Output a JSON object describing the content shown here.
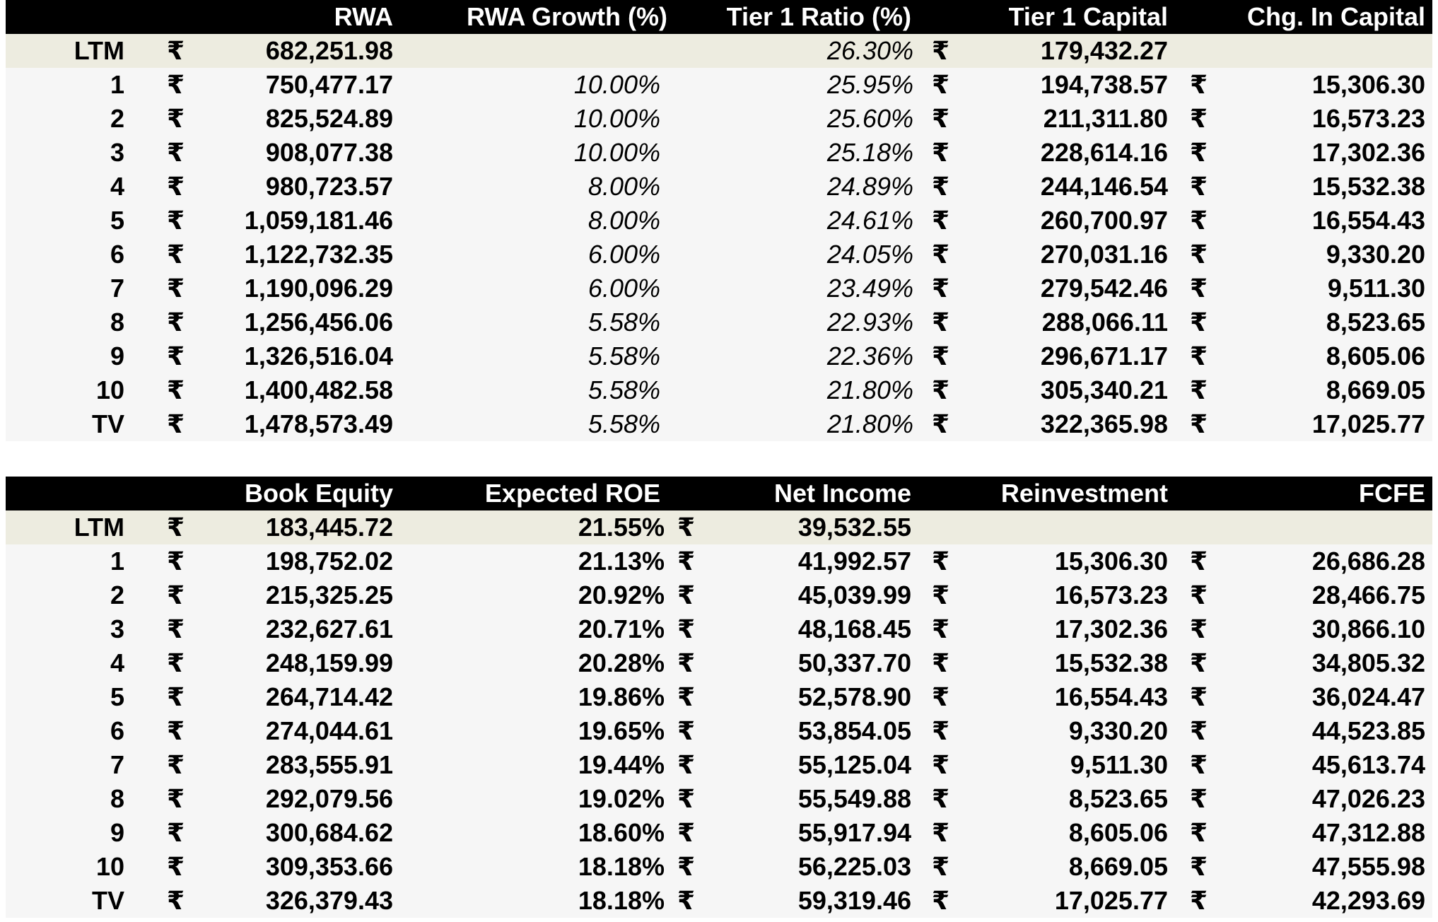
{
  "table1": {
    "headers": [
      "RWA",
      "RWA Growth (%)",
      "Tier 1 Ratio (%)",
      "Tier 1 Capital",
      "Chg. In Capital"
    ],
    "currency": "₹",
    "rows": [
      {
        "label": "LTM",
        "rwa": "682,251.98",
        "growth": "",
        "ratio": "26.30%",
        "capital": "179,432.27",
        "chg": ""
      },
      {
        "label": "1",
        "rwa": "750,477.17",
        "growth": "10.00%",
        "ratio": "25.95%",
        "capital": "194,738.57",
        "chg": "15,306.30"
      },
      {
        "label": "2",
        "rwa": "825,524.89",
        "growth": "10.00%",
        "ratio": "25.60%",
        "capital": "211,311.80",
        "chg": "16,573.23"
      },
      {
        "label": "3",
        "rwa": "908,077.38",
        "growth": "10.00%",
        "ratio": "25.18%",
        "capital": "228,614.16",
        "chg": "17,302.36"
      },
      {
        "label": "4",
        "rwa": "980,723.57",
        "growth": "8.00%",
        "ratio": "24.89%",
        "capital": "244,146.54",
        "chg": "15,532.38"
      },
      {
        "label": "5",
        "rwa": "1,059,181.46",
        "growth": "8.00%",
        "ratio": "24.61%",
        "capital": "260,700.97",
        "chg": "16,554.43"
      },
      {
        "label": "6",
        "rwa": "1,122,732.35",
        "growth": "6.00%",
        "ratio": "24.05%",
        "capital": "270,031.16",
        "chg": "9,330.20"
      },
      {
        "label": "7",
        "rwa": "1,190,096.29",
        "growth": "6.00%",
        "ratio": "23.49%",
        "capital": "279,542.46",
        "chg": "9,511.30"
      },
      {
        "label": "8",
        "rwa": "1,256,456.06",
        "growth": "5.58%",
        "ratio": "22.93%",
        "capital": "288,066.11",
        "chg": "8,523.65"
      },
      {
        "label": "9",
        "rwa": "1,326,516.04",
        "growth": "5.58%",
        "ratio": "22.36%",
        "capital": "296,671.17",
        "chg": "8,605.06"
      },
      {
        "label": "10",
        "rwa": "1,400,482.58",
        "growth": "5.58%",
        "ratio": "21.80%",
        "capital": "305,340.21",
        "chg": "8,669.05"
      },
      {
        "label": "TV",
        "rwa": "1,478,573.49",
        "growth": "5.58%",
        "ratio": "21.80%",
        "capital": "322,365.98",
        "chg": "17,025.77"
      }
    ]
  },
  "table2": {
    "headers": [
      "Book Equity",
      "Expected ROE",
      "Net Income",
      "Reinvestment",
      "FCFE"
    ],
    "currency": "₹",
    "rows": [
      {
        "label": "LTM",
        "equity": "183,445.72",
        "roe": "21.55%",
        "income": "39,532.55",
        "reinv": "",
        "fcfe": ""
      },
      {
        "label": "1",
        "equity": "198,752.02",
        "roe": "21.13%",
        "income": "41,992.57",
        "reinv": "15,306.30",
        "fcfe": "26,686.28"
      },
      {
        "label": "2",
        "equity": "215,325.25",
        "roe": "20.92%",
        "income": "45,039.99",
        "reinv": "16,573.23",
        "fcfe": "28,466.75"
      },
      {
        "label": "3",
        "equity": "232,627.61",
        "roe": "20.71%",
        "income": "48,168.45",
        "reinv": "17,302.36",
        "fcfe": "30,866.10"
      },
      {
        "label": "4",
        "equity": "248,159.99",
        "roe": "20.28%",
        "income": "50,337.70",
        "reinv": "15,532.38",
        "fcfe": "34,805.32"
      },
      {
        "label": "5",
        "equity": "264,714.42",
        "roe": "19.86%",
        "income": "52,578.90",
        "reinv": "16,554.43",
        "fcfe": "36,024.47"
      },
      {
        "label": "6",
        "equity": "274,044.61",
        "roe": "19.65%",
        "income": "53,854.05",
        "reinv": "9,330.20",
        "fcfe": "44,523.85"
      },
      {
        "label": "7",
        "equity": "283,555.91",
        "roe": "19.44%",
        "income": "55,125.04",
        "reinv": "9,511.30",
        "fcfe": "45,613.74"
      },
      {
        "label": "8",
        "equity": "292,079.56",
        "roe": "19.02%",
        "income": "55,549.88",
        "reinv": "8,523.65",
        "fcfe": "47,026.23"
      },
      {
        "label": "9",
        "equity": "300,684.62",
        "roe": "18.60%",
        "income": "55,917.94",
        "reinv": "8,605.06",
        "fcfe": "47,312.88"
      },
      {
        "label": "10",
        "equity": "309,353.66",
        "roe": "18.18%",
        "income": "56,225.03",
        "reinv": "8,669.05",
        "fcfe": "47,555.98"
      },
      {
        "label": "TV",
        "equity": "326,379.43",
        "roe": "18.18%",
        "income": "59,319.46",
        "reinv": "17,025.77",
        "fcfe": "42,293.69"
      }
    ]
  }
}
